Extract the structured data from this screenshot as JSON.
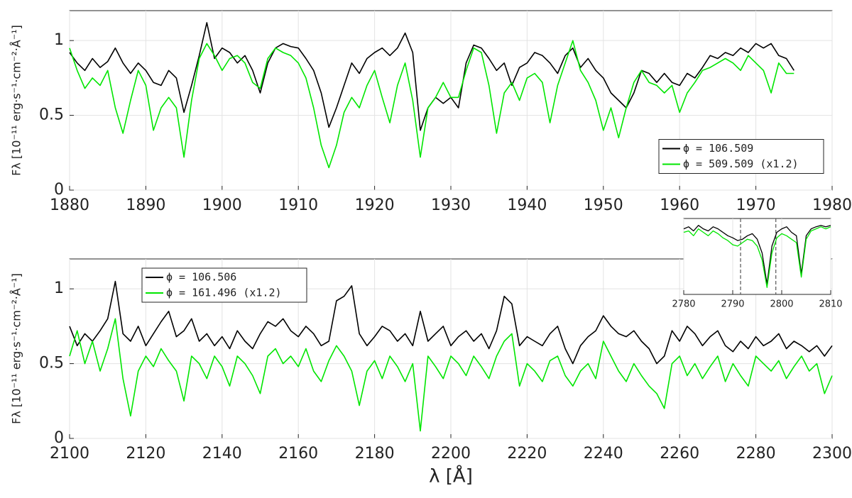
{
  "chart_data": [
    {
      "type": "line",
      "ylabel": "Fλ [10⁻¹¹ erg·s⁻¹·cm⁻²·Å⁻¹]",
      "x": [
        1880,
        1881,
        1882,
        1883,
        1884,
        1885,
        1886,
        1887,
        1888,
        1889,
        1890,
        1891,
        1892,
        1893,
        1894,
        1895,
        1896,
        1897,
        1898,
        1899,
        1900,
        1901,
        1902,
        1903,
        1904,
        1905,
        1906,
        1907,
        1908,
        1909,
        1910,
        1911,
        1912,
        1913,
        1914,
        1915,
        1916,
        1917,
        1918,
        1919,
        1920,
        1921,
        1922,
        1923,
        1924,
        1925,
        1926,
        1927,
        1928,
        1929,
        1930,
        1931,
        1932,
        1933,
        1934,
        1935,
        1936,
        1937,
        1938,
        1939,
        1940,
        1941,
        1942,
        1943,
        1944,
        1945,
        1946,
        1947,
        1948,
        1949,
        1950,
        1951,
        1952,
        1953,
        1954,
        1955,
        1956,
        1957,
        1958,
        1959,
        1960,
        1961,
        1962,
        1963,
        1964,
        1965,
        1966,
        1967,
        1968,
        1969,
        1970,
        1971,
        1972,
        1973,
        1974,
        1975
      ],
      "series": [
        {
          "name": "ϕ = 106.509",
          "color": "#000000",
          "values": [
            0.92,
            0.85,
            0.8,
            0.88,
            0.82,
            0.86,
            0.95,
            0.85,
            0.78,
            0.85,
            0.8,
            0.72,
            0.7,
            0.8,
            0.75,
            0.52,
            0.7,
            0.9,
            1.12,
            0.88,
            0.95,
            0.92,
            0.85,
            0.9,
            0.8,
            0.65,
            0.85,
            0.95,
            0.98,
            0.96,
            0.95,
            0.88,
            0.8,
            0.65,
            0.42,
            0.55,
            0.7,
            0.85,
            0.78,
            0.88,
            0.92,
            0.95,
            0.9,
            0.95,
            1.05,
            0.92,
            0.4,
            0.55,
            0.62,
            0.58,
            0.62,
            0.55,
            0.85,
            0.97,
            0.95,
            0.88,
            0.8,
            0.85,
            0.7,
            0.82,
            0.85,
            0.92,
            0.9,
            0.85,
            0.78,
            0.9,
            0.95,
            0.82,
            0.88,
            0.8,
            0.75,
            0.65,
            0.6,
            0.55,
            0.65,
            0.8,
            0.78,
            0.72,
            0.78,
            0.72,
            0.7,
            0.78,
            0.75,
            0.82,
            0.9,
            0.88,
            0.92,
            0.9,
            0.95,
            0.92,
            0.98,
            0.95,
            0.98,
            0.9,
            0.88,
            0.8
          ]
        },
        {
          "name": "ϕ = 509.509 (x1.2)",
          "color": "#00e600",
          "values": [
            0.95,
            0.8,
            0.68,
            0.75,
            0.7,
            0.8,
            0.55,
            0.38,
            0.6,
            0.8,
            0.7,
            0.4,
            0.55,
            0.62,
            0.55,
            0.22,
            0.6,
            0.88,
            0.98,
            0.9,
            0.8,
            0.88,
            0.9,
            0.85,
            0.72,
            0.68,
            0.88,
            0.95,
            0.92,
            0.9,
            0.85,
            0.75,
            0.55,
            0.3,
            0.15,
            0.3,
            0.52,
            0.62,
            0.55,
            0.7,
            0.8,
            0.62,
            0.45,
            0.7,
            0.85,
            0.6,
            0.22,
            0.55,
            0.62,
            0.72,
            0.62,
            0.62,
            0.8,
            0.95,
            0.92,
            0.7,
            0.38,
            0.65,
            0.72,
            0.6,
            0.75,
            0.78,
            0.72,
            0.45,
            0.7,
            0.85,
            1.0,
            0.8,
            0.72,
            0.6,
            0.4,
            0.55,
            0.35,
            0.55,
            0.72,
            0.8,
            0.72,
            0.7,
            0.65,
            0.7,
            0.52,
            0.65,
            0.72,
            0.8,
            0.82,
            0.85,
            0.88,
            0.85,
            0.8,
            0.9,
            0.85,
            0.8,
            0.65,
            0.85,
            0.78,
            0.78
          ]
        }
      ],
      "xlim": [
        1880,
        1980
      ],
      "xticks": [
        1880,
        1890,
        1900,
        1910,
        1920,
        1930,
        1940,
        1950,
        1960,
        1970,
        1980
      ],
      "ylim": [
        0,
        1.2
      ],
      "yticks": [
        0,
        0.5,
        1
      ],
      "grid": true,
      "legend": "right"
    },
    {
      "type": "line",
      "ylabel": "Fλ [10⁻¹¹ erg·s⁻¹·cm⁻²·Å⁻¹]",
      "xlabel": "λ [Å]",
      "x": [
        2100,
        2102,
        2104,
        2106,
        2108,
        2110,
        2112,
        2114,
        2116,
        2118,
        2120,
        2122,
        2124,
        2126,
        2128,
        2130,
        2132,
        2134,
        2136,
        2138,
        2140,
        2142,
        2144,
        2146,
        2148,
        2150,
        2152,
        2154,
        2156,
        2158,
        2160,
        2162,
        2164,
        2166,
        2168,
        2170,
        2172,
        2174,
        2176,
        2178,
        2180,
        2182,
        2184,
        2186,
        2188,
        2190,
        2192,
        2194,
        2196,
        2198,
        2200,
        2202,
        2204,
        2206,
        2208,
        2210,
        2212,
        2214,
        2216,
        2218,
        2220,
        2222,
        2224,
        2226,
        2228,
        2230,
        2232,
        2234,
        2236,
        2238,
        2240,
        2242,
        2244,
        2246,
        2248,
        2250,
        2252,
        2254,
        2256,
        2258,
        2260,
        2262,
        2264,
        2266,
        2268,
        2270,
        2272,
        2274,
        2276,
        2278,
        2280,
        2282,
        2284,
        2286,
        2288,
        2290,
        2292,
        2294,
        2296,
        2298,
        2300
      ],
      "series": [
        {
          "name": "ϕ = 106.506",
          "color": "#000000",
          "values": [
            0.75,
            0.62,
            0.7,
            0.65,
            0.72,
            0.8,
            1.05,
            0.7,
            0.65,
            0.75,
            0.62,
            0.7,
            0.78,
            0.85,
            0.68,
            0.72,
            0.8,
            0.65,
            0.7,
            0.62,
            0.68,
            0.6,
            0.72,
            0.65,
            0.6,
            0.7,
            0.78,
            0.75,
            0.8,
            0.72,
            0.68,
            0.75,
            0.7,
            0.62,
            0.65,
            0.92,
            0.95,
            1.02,
            0.7,
            0.62,
            0.68,
            0.75,
            0.72,
            0.65,
            0.7,
            0.62,
            0.85,
            0.65,
            0.7,
            0.75,
            0.62,
            0.68,
            0.72,
            0.65,
            0.7,
            0.6,
            0.72,
            0.95,
            0.9,
            0.62,
            0.68,
            0.65,
            0.62,
            0.7,
            0.75,
            0.6,
            0.5,
            0.62,
            0.68,
            0.72,
            0.82,
            0.75,
            0.7,
            0.68,
            0.72,
            0.65,
            0.6,
            0.5,
            0.55,
            0.72,
            0.65,
            0.75,
            0.7,
            0.62,
            0.68,
            0.72,
            0.62,
            0.58,
            0.65,
            0.6,
            0.68,
            0.62,
            0.65,
            0.7,
            0.6,
            0.65,
            0.62,
            0.58,
            0.62,
            0.55,
            0.62
          ]
        },
        {
          "name": "ϕ = 161.496 (x1.2)",
          "color": "#00e600",
          "values": [
            0.55,
            0.72,
            0.5,
            0.65,
            0.45,
            0.6,
            0.8,
            0.4,
            0.15,
            0.45,
            0.55,
            0.48,
            0.6,
            0.52,
            0.45,
            0.25,
            0.55,
            0.5,
            0.4,
            0.55,
            0.48,
            0.35,
            0.55,
            0.5,
            0.42,
            0.3,
            0.55,
            0.6,
            0.5,
            0.55,
            0.48,
            0.6,
            0.45,
            0.38,
            0.52,
            0.62,
            0.55,
            0.45,
            0.22,
            0.45,
            0.52,
            0.4,
            0.55,
            0.48,
            0.38,
            0.5,
            0.05,
            0.55,
            0.48,
            0.4,
            0.55,
            0.5,
            0.42,
            0.55,
            0.48,
            0.4,
            0.55,
            0.65,
            0.7,
            0.35,
            0.5,
            0.45,
            0.38,
            0.52,
            0.55,
            0.42,
            0.35,
            0.45,
            0.5,
            0.4,
            0.65,
            0.55,
            0.45,
            0.38,
            0.5,
            0.42,
            0.35,
            0.3,
            0.2,
            0.5,
            0.55,
            0.42,
            0.5,
            0.4,
            0.48,
            0.55,
            0.38,
            0.5,
            0.42,
            0.35,
            0.55,
            0.5,
            0.45,
            0.52,
            0.4,
            0.48,
            0.55,
            0.45,
            0.5,
            0.3,
            0.42
          ]
        }
      ],
      "xlim": [
        2100,
        2300
      ],
      "xticks": [
        2100,
        2120,
        2140,
        2160,
        2180,
        2200,
        2220,
        2240,
        2260,
        2280,
        2300
      ],
      "ylim": [
        0,
        1.2
      ],
      "yticks": [
        0,
        0.5,
        1
      ],
      "grid": true,
      "legend": "upper left"
    },
    {
      "type": "line",
      "x": [
        2780,
        2781,
        2782,
        2783,
        2784,
        2785,
        2786,
        2787,
        2788,
        2789,
        2790,
        2791,
        2792,
        2793,
        2794,
        2795,
        2796,
        2797,
        2798,
        2799,
        2800,
        2801,
        2802,
        2803,
        2804,
        2805,
        2806,
        2807,
        2808,
        2809,
        2810
      ],
      "series": [
        {
          "color": "#000000",
          "values": [
            0.95,
            0.98,
            0.92,
            1.0,
            0.95,
            0.92,
            0.98,
            0.95,
            0.9,
            0.85,
            0.82,
            0.78,
            0.8,
            0.85,
            0.88,
            0.8,
            0.6,
            0.15,
            0.7,
            0.9,
            0.95,
            0.98,
            0.9,
            0.85,
            0.3,
            0.85,
            0.95,
            0.98,
            1.0,
            0.98,
            1.0
          ]
        },
        {
          "color": "#00e600",
          "values": [
            0.9,
            0.92,
            0.85,
            0.95,
            0.9,
            0.85,
            0.92,
            0.88,
            0.82,
            0.78,
            0.72,
            0.7,
            0.75,
            0.8,
            0.78,
            0.7,
            0.5,
            0.1,
            0.6,
            0.82,
            0.88,
            0.85,
            0.8,
            0.75,
            0.25,
            0.8,
            0.92,
            0.95,
            0.98,
            0.95,
            0.98
          ]
        }
      ],
      "xlim": [
        2780,
        2810
      ],
      "xticks": [
        2780,
        2790,
        2800,
        2810
      ],
      "ylim": [
        0,
        1.1
      ],
      "grid": true,
      "vlines": [
        2791.6,
        2798.8
      ]
    }
  ]
}
